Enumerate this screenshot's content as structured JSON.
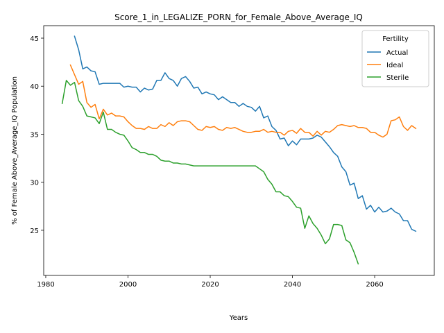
{
  "chart_data": {
    "type": "line",
    "title": "Score_1_in_LEGALIZE_PORN_for_Female_Above_Average_IQ",
    "xlabel": "Years",
    "ylabel": "% of Female Above_Average_IQ Population",
    "xlim": [
      1979.5,
      2074.5
    ],
    "ylim": [
      20.3,
      46.3
    ],
    "xticks": [
      1980,
      2000,
      2020,
      2040,
      2060
    ],
    "yticks": [
      25,
      30,
      35,
      40,
      45
    ],
    "grid": false,
    "legend": {
      "title": "Fertility",
      "placement": "top-right"
    },
    "series": [
      {
        "name": "Actual",
        "color": "#1f77b4",
        "x": [
          1987,
          1988,
          1989,
          1990,
          1991,
          1992,
          1993,
          1994,
          1995,
          1996,
          1997,
          1998,
          1999,
          2000,
          2001,
          2002,
          2003,
          2004,
          2005,
          2006,
          2007,
          2008,
          2009,
          2010,
          2011,
          2012,
          2013,
          2014,
          2015,
          2016,
          2017,
          2018,
          2019,
          2020,
          2021,
          2022,
          2023,
          2024,
          2025,
          2026,
          2027,
          2028,
          2029,
          2030,
          2031,
          2032,
          2033,
          2034,
          2035,
          2036,
          2037,
          2038,
          2039,
          2040,
          2041,
          2042,
          2043,
          2044,
          2045,
          2046,
          2047,
          2048,
          2049,
          2050,
          2051,
          2052,
          2053,
          2054,
          2055,
          2056,
          2057,
          2058,
          2059,
          2060,
          2061,
          2062,
          2063,
          2064,
          2065,
          2066,
          2067,
          2068,
          2069,
          2070
        ],
        "y": [
          45.2,
          43.8,
          41.8,
          42.0,
          41.6,
          41.5,
          40.2,
          40.3,
          40.3,
          40.3,
          40.3,
          40.3,
          39.9,
          40.0,
          39.9,
          39.9,
          39.4,
          39.8,
          39.6,
          39.7,
          40.6,
          40.6,
          41.4,
          40.8,
          40.6,
          40.0,
          40.8,
          41.0,
          40.5,
          39.8,
          39.9,
          39.2,
          39.4,
          39.2,
          39.1,
          38.6,
          38.9,
          38.6,
          38.3,
          38.3,
          37.9,
          38.2,
          37.9,
          37.8,
          37.4,
          37.9,
          36.7,
          36.9,
          35.8,
          35.4,
          34.5,
          34.6,
          33.8,
          34.3,
          33.9,
          34.5,
          34.5,
          34.5,
          34.6,
          34.9,
          34.7,
          34.2,
          33.7,
          33.1,
          32.7,
          31.6,
          31.1,
          29.7,
          29.9,
          28.3,
          28.6,
          27.2,
          27.6,
          26.9,
          27.4,
          26.9,
          27.0,
          27.3,
          26.9,
          26.7,
          26.0,
          26.0,
          25.1,
          24.9
        ]
      },
      {
        "name": "Ideal",
        "color": "#ff7f0e",
        "x": [
          1986,
          1987,
          1988,
          1989,
          1990,
          1991,
          1992,
          1993,
          1994,
          1995,
          1996,
          1997,
          1998,
          1999,
          2000,
          2001,
          2002,
          2003,
          2004,
          2005,
          2006,
          2007,
          2008,
          2009,
          2010,
          2011,
          2012,
          2013,
          2014,
          2015,
          2016,
          2017,
          2018,
          2019,
          2020,
          2021,
          2022,
          2023,
          2024,
          2025,
          2026,
          2027,
          2028,
          2029,
          2030,
          2031,
          2032,
          2033,
          2034,
          2035,
          2036,
          2037,
          2038,
          2039,
          2040,
          2041,
          2042,
          2043,
          2044,
          2045,
          2046,
          2047,
          2048,
          2049,
          2050,
          2051,
          2052,
          2053,
          2054,
          2055,
          2056,
          2057,
          2058,
          2059,
          2060,
          2061,
          2062,
          2063,
          2064,
          2065,
          2066,
          2067,
          2068,
          2069,
          2070
        ],
        "y": [
          42.2,
          41.2,
          40.2,
          40.5,
          38.3,
          37.8,
          38.1,
          36.6,
          37.6,
          37.0,
          37.2,
          36.9,
          36.9,
          36.8,
          36.3,
          35.9,
          35.6,
          35.6,
          35.5,
          35.8,
          35.6,
          35.6,
          36.0,
          35.8,
          36.2,
          35.9,
          36.3,
          36.4,
          36.4,
          36.3,
          35.9,
          35.5,
          35.4,
          35.8,
          35.7,
          35.8,
          35.5,
          35.4,
          35.7,
          35.6,
          35.7,
          35.5,
          35.3,
          35.2,
          35.2,
          35.3,
          35.3,
          35.5,
          35.2,
          35.3,
          35.2,
          35.2,
          34.9,
          35.3,
          35.4,
          35.1,
          35.6,
          35.2,
          35.2,
          34.8,
          35.3,
          34.9,
          35.3,
          35.2,
          35.5,
          35.9,
          36.0,
          35.9,
          35.8,
          35.9,
          35.7,
          35.7,
          35.6,
          35.2,
          35.2,
          34.9,
          34.7,
          35.0,
          36.4,
          36.5,
          36.8,
          35.8,
          35.4,
          35.9,
          35.6
        ]
      },
      {
        "name": "Sterile",
        "color": "#2ca02c",
        "x": [
          1984,
          1985,
          1986,
          1987,
          1988,
          1989,
          1990,
          1991,
          1992,
          1993,
          1994,
          1995,
          1996,
          1997,
          1998,
          1999,
          2000,
          2001,
          2002,
          2003,
          2004,
          2005,
          2006,
          2007,
          2008,
          2009,
          2010,
          2011,
          2012,
          2013,
          2014,
          2015,
          2016,
          2017,
          2018,
          2019,
          2020,
          2021,
          2022,
          2023,
          2024,
          2025,
          2026,
          2027,
          2028,
          2029,
          2030,
          2031,
          2032,
          2033,
          2034,
          2035,
          2036,
          2037,
          2038,
          2039,
          2040,
          2041,
          2042,
          2043,
          2044,
          2045,
          2046,
          2047,
          2048,
          2049,
          2050,
          2051,
          2052,
          2053,
          2054,
          2055,
          2056
        ],
        "y": [
          38.2,
          40.6,
          40.1,
          40.4,
          38.5,
          37.9,
          36.9,
          36.8,
          36.7,
          36.1,
          37.3,
          35.5,
          35.5,
          35.2,
          35.0,
          34.9,
          34.3,
          33.6,
          33.4,
          33.1,
          33.1,
          32.9,
          32.9,
          32.7,
          32.3,
          32.2,
          32.2,
          32.0,
          32.0,
          31.9,
          31.9,
          31.8,
          31.7,
          31.7,
          31.7,
          31.7,
          31.7,
          31.7,
          31.7,
          31.7,
          31.7,
          31.7,
          31.7,
          31.7,
          31.7,
          31.7,
          31.7,
          31.7,
          31.4,
          31.1,
          30.3,
          29.8,
          29.0,
          29.0,
          28.6,
          28.5,
          28.0,
          27.4,
          27.3,
          25.2,
          26.5,
          25.7,
          25.2,
          24.5,
          23.6,
          24.1,
          25.6,
          25.6,
          25.5,
          24.0,
          23.7,
          22.7,
          21.5
        ]
      }
    ]
  }
}
